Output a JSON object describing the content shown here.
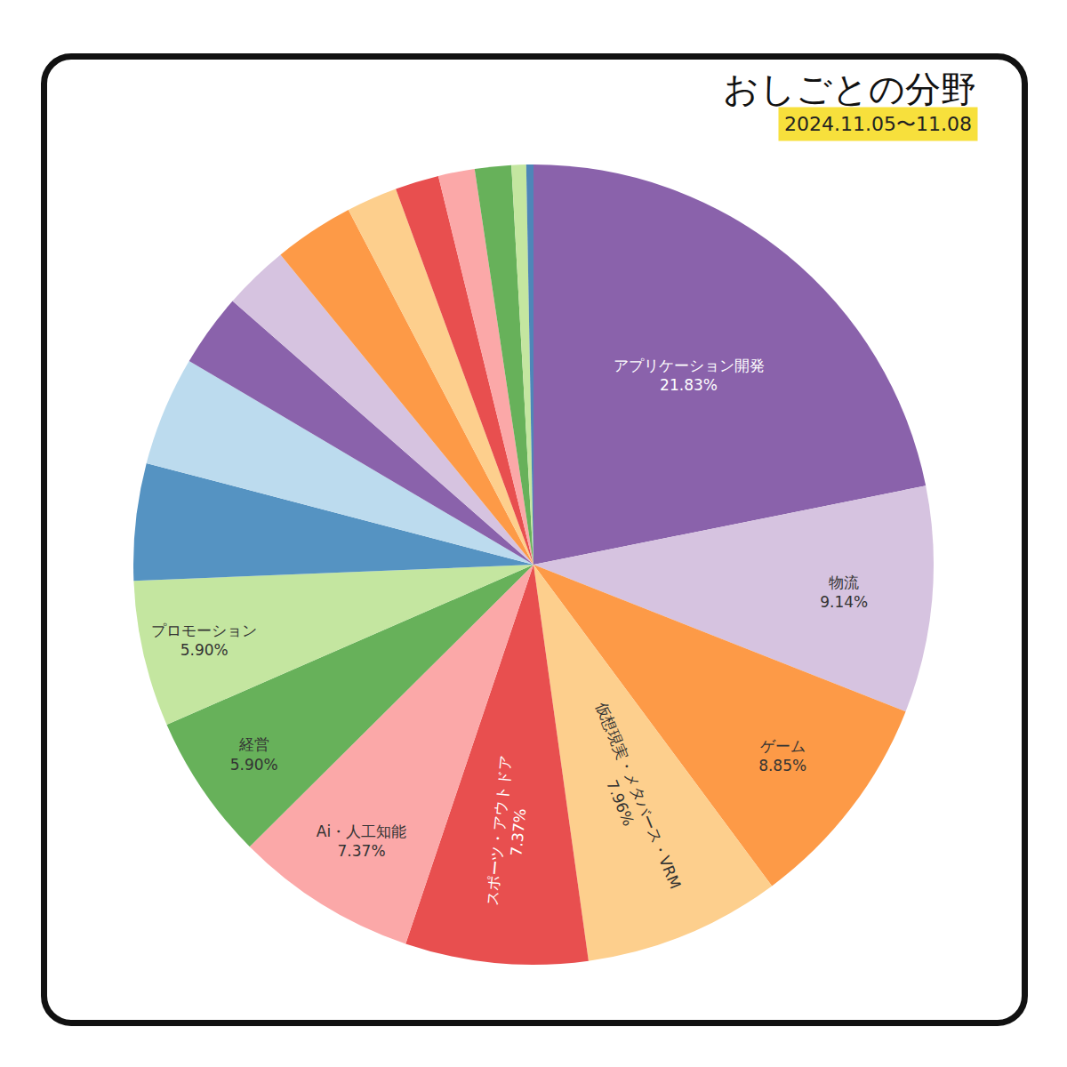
{
  "chart_data": {
    "type": "pie",
    "title": "おしごとの分野",
    "subtitle": "2024.11.05〜11.08",
    "categories": [
      "アプリケーション開発",
      "物流",
      "ゲーム",
      "仮想現実・メタバース・VRM",
      "スポーツ・アウトドア",
      "Ai・人工知能",
      "経営",
      "プロモーション",
      null,
      null,
      null,
      null,
      null,
      null,
      null,
      null,
      null,
      null,
      null
    ],
    "values": [
      21.83,
      9.14,
      8.85,
      7.96,
      7.37,
      7.37,
      5.9,
      5.9,
      4.72,
      4.42,
      2.95,
      2.65,
      3.24,
      2.06,
      1.77,
      1.47,
      1.47,
      0.59,
      0.29
    ],
    "value_labels": [
      "21.83%",
      "9.14%",
      "8.85%",
      "7.96%",
      "7.37%",
      "7.37%",
      "5.90%",
      "5.90%",
      null,
      null,
      null,
      null,
      null,
      null,
      null,
      null,
      null,
      null,
      null
    ],
    "colors": [
      "#8a62ab",
      "#d6c3e0",
      "#fd9a47",
      "#fdcf8d",
      "#e84f4f",
      "#fba8a8",
      "#67b15a",
      "#c4e6a0",
      "#5593c2",
      "#bcdbee",
      "#8a62ab",
      "#d6c3e0",
      "#fd9a47",
      "#fdcf8d",
      "#e84f4f",
      "#fba8a8",
      "#67b15a",
      "#c4e6a0",
      "#4e86b8"
    ],
    "data_labels": true
  }
}
